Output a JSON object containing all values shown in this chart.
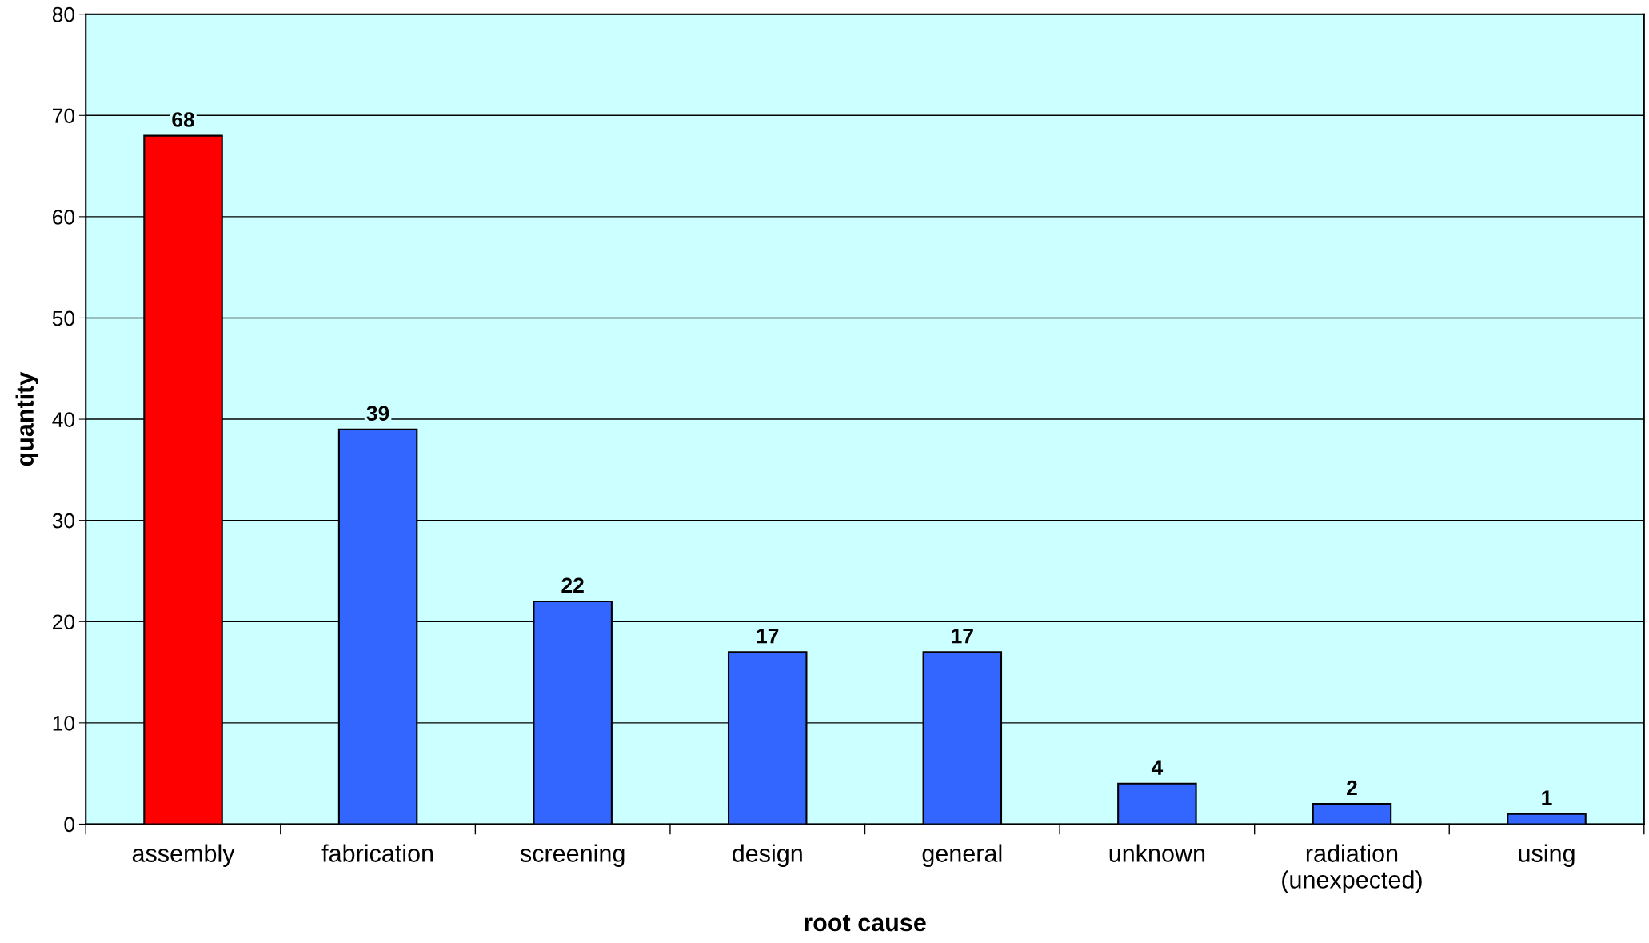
{
  "chart_data": {
    "type": "bar",
    "xlabel": "root cause",
    "ylabel": "quantity",
    "categories": [
      "assembly",
      "fabrication",
      "screening",
      "design",
      "general",
      "unknown",
      "radiation\n(unexpected)",
      "using"
    ],
    "values": [
      68,
      39,
      22,
      17,
      17,
      4,
      2,
      1
    ],
    "colors": [
      "#ff0000",
      "#3366ff",
      "#3366ff",
      "#3366ff",
      "#3366ff",
      "#3366ff",
      "#3366ff",
      "#3366ff"
    ],
    "ylim": [
      0,
      80
    ],
    "yticks": [
      0,
      10,
      20,
      30,
      40,
      50,
      60,
      70,
      80
    ],
    "grid": "y",
    "data_labels": true
  }
}
